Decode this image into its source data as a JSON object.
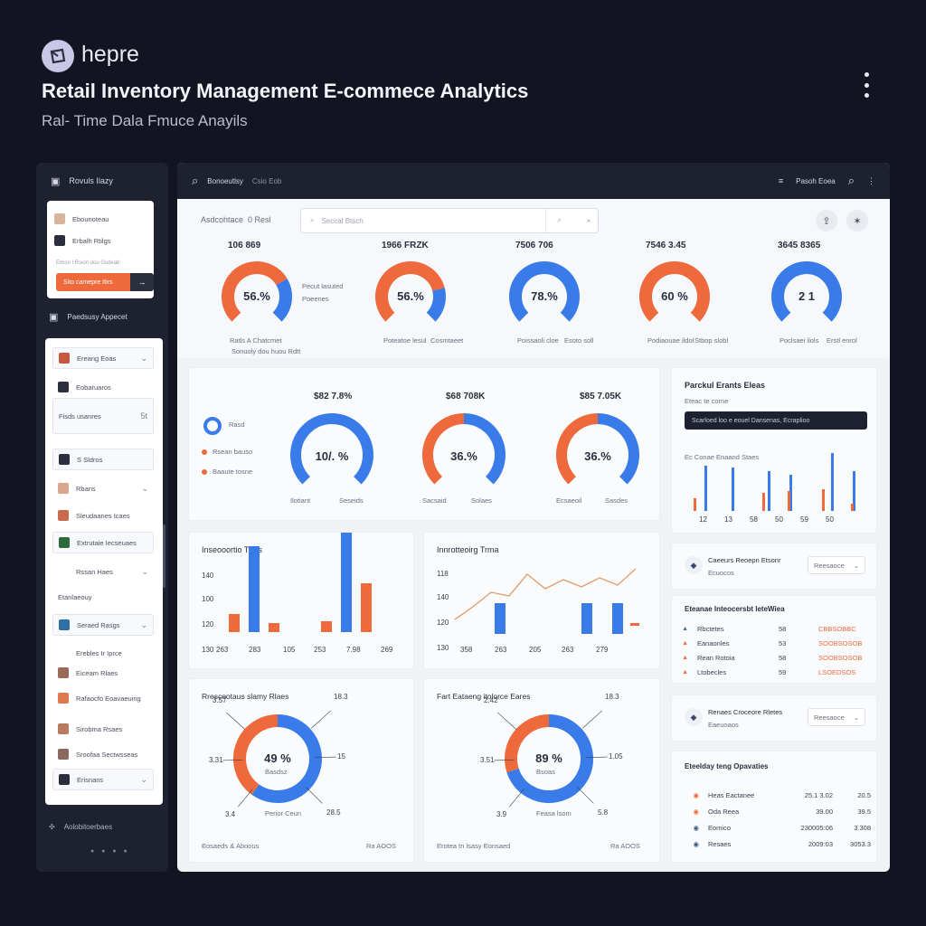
{
  "header": {
    "brand": "hepre",
    "title": "Retail Inventory Management E-commece Analytics",
    "subtitle": "Ral- Time Dala Fmuce Anayils"
  },
  "sidebar": {
    "heading": "Rovuls Ilazy",
    "card_rows": [
      "Ebounoteau",
      "Erbalh Rtilgs"
    ],
    "card_hint": "Erbon l Rsion dou Gsdeab",
    "cta_label": "Sito camepre Itirs",
    "cta_arrow": "→",
    "section": "Paedsusy Appecet",
    "items": [
      {
        "label": "Ereang Eoas",
        "chev": "⌄"
      },
      {
        "label": "Eobaruaros",
        "chev": ""
      },
      {
        "label": "Fisds usanres",
        "chev": "5t"
      },
      {
        "label": "S Sldros",
        "chev": ""
      },
      {
        "label": "Rbans",
        "chev": "⌄"
      },
      {
        "label": "Sleudaanes Icaes",
        "chev": ""
      },
      {
        "label": "Extrutaie Iecseuaes",
        "chev": ""
      },
      {
        "label": "Rssan Haes",
        "chev": "⌄"
      },
      {
        "label": "Etanlaeouy",
        "chev": ""
      },
      {
        "label": "Seraed Rasgs",
        "chev": "⌄"
      },
      {
        "label": "Erebles Ir Iprce",
        "chev": ""
      },
      {
        "label": "Eiceam Rlaes",
        "chev": ""
      },
      {
        "label": "Rafaocfo Eoavaeuing",
        "chev": ""
      },
      {
        "label": "Sirobma Rsaes",
        "chev": ""
      },
      {
        "label": "Sroofaa Sectwsseas",
        "chev": ""
      },
      {
        "label": "Erisnans",
        "chev": "⌄"
      }
    ],
    "footer": "Aolobitoerbaes"
  },
  "topbar": {
    "title": "Bonoeutlsy",
    "tag": "Csio Eob",
    "right_label": "Pasoh Eoea"
  },
  "top_gauges": {
    "label": "Asdcohtace",
    "label_extra": "0  Resl",
    "search_placeholder": "Seccal Btsch",
    "items": [
      {
        "caption": "106 869",
        "value": "56.%",
        "pct": 0.72,
        "color": "#ee6a3c",
        "legend": [
          "Pecut lasuted",
          "Poeenes"
        ],
        "foot": "Ratls A Chatcmet",
        "foot2": "Sonuoly dou huou Rdtt"
      },
      {
        "caption": "1966 FRZK",
        "value": "56.%",
        "pct": 0.78,
        "color": "#ee6a3c",
        "foot": "Poteatoe lesul",
        "foot2": "Cosmtaeet"
      },
      {
        "caption": "7506 706",
        "value": "78.%",
        "pct": 1.0,
        "color": "#3a7bea",
        "foot": "Poissaoli cloe",
        "foot2": "Esoto soll"
      },
      {
        "caption": "7546 3.45",
        "value": "60 %",
        "pct": 1.0,
        "color": "#ee6a3c",
        "foot": "Podiaouae ildol",
        "foot2": "Stbop slobl"
      },
      {
        "caption": "3645 8365",
        "value": "2 1",
        "pct": 1.0,
        "color": "#3a7bea",
        "foot": "Poclsaei ilols",
        "foot2": "Erstl enrol"
      }
    ]
  },
  "mid_gauges": {
    "legend": [
      "Rasd",
      "Rsean bauso",
      "Baaute tosne"
    ],
    "items": [
      {
        "caption": "$82 7.8%",
        "value": "10/. %",
        "pct": 1.0,
        "color": "#3a7bea",
        "l": "Ilotiant",
        "r": "Seseids"
      },
      {
        "caption": "$68 708K",
        "value": "36.%",
        "pct": 0.5,
        "color": "#ee6a3c",
        "l": "Sacsaid",
        "r": "Solaes"
      },
      {
        "caption": "$85 7.05K",
        "value": "36.%",
        "pct": 0.5,
        "color": "#ee6a3c",
        "l": "Ecsaeoil",
        "r": "Sasdes"
      }
    ]
  },
  "right_panel": {
    "title": "Parckul Erants Eleas",
    "sub": "Eteac te corne",
    "dark_label": "Scarloed loo e eouel Dansenas, Ecraplioo",
    "chart_title": "Ec Conae Enaand Staes",
    "cards": [
      {
        "t": "Caeeurs Reoepn Etsonr",
        "s": "Ecuocos",
        "dd": "Reesaoce"
      },
      {
        "t": "Renaes Croceore Rletes",
        "s": "Eaeuoaos",
        "dd": "Reesaoce"
      }
    ],
    "list_title": "Eteanae Inteocersbt leteWiea",
    "list": [
      {
        "n": "Rbctetes",
        "v": "58",
        "o": "CBBSOBBC"
      },
      {
        "n": "Eanaonles",
        "v": "53",
        "o": "SOOBSOSOB"
      },
      {
        "n": "Rean Rotoia",
        "v": "58",
        "o": "SOOBSOSOB"
      },
      {
        "n": "Ltobecles",
        "v": "59",
        "o": "LSOEDSOS"
      }
    ],
    "ops_title": "Eteelday teng Opavaties",
    "ops": [
      {
        "n": "Heas Eactanee",
        "v": "25.1 3.02",
        "o": "20.5"
      },
      {
        "n": "Oda Reea",
        "v": "39.00",
        "o": "39.5"
      },
      {
        "n": "Eomico",
        "v": "230005:06",
        "o": "3.308"
      },
      {
        "n": "Resaes",
        "v": "2009:03",
        "o": "3053.3"
      }
    ]
  },
  "chart_data": [
    {
      "type": "bar",
      "title": "Inseooortio Trms",
      "ylabels": [
        "140",
        "100",
        "120",
        "130"
      ],
      "categories": [
        "263",
        "283",
        "105",
        "253",
        "7.98",
        "269"
      ],
      "series": [
        {
          "values": [
            20,
            95,
            10,
            12,
            110,
            54
          ]
        },
        {
          "values": [
            0,
            0,
            0,
            0,
            0,
            0
          ]
        }
      ]
    },
    {
      "type": "line",
      "title": "Innrotteoirg Trma",
      "ylabels": [
        "118",
        "140",
        "120",
        "130"
      ],
      "categories": [
        "358",
        "263",
        "205",
        "263",
        "279"
      ],
      "line": [
        12,
        26,
        42,
        38,
        62,
        46,
        56,
        48,
        58,
        50,
        68
      ],
      "bars": [
        34,
        34,
        34
      ]
    },
    {
      "type": "pie",
      "title": "Rresceotaus slamy Rlaes",
      "center_value": "49 %",
      "center_label": "Basdsz",
      "callouts": [
        "3.57",
        "18.3",
        "15",
        "3.31",
        "28.5",
        "3.4"
      ],
      "slices": [
        {
          "label": "Blue",
          "value": 60
        },
        {
          "label": "Orange",
          "value": 40
        }
      ],
      "footer_l": "Eosaeds & Aboous",
      "footer_r": "Ra  AOOS",
      "footer_mid": "Perior Ceun"
    },
    {
      "type": "pie",
      "title": "Fart Eataeng itolorce Eares",
      "center_value": "89 %",
      "center_label": "Bsoas",
      "callouts": [
        "2.42",
        "18.3",
        "1.05",
        "3.51",
        "5.8",
        "3.9"
      ],
      "slices": [
        {
          "label": "Blue",
          "value": 70
        },
        {
          "label": "Orange",
          "value": 30
        }
      ],
      "footer_l": "Erotea tn lsasy Eonsaed",
      "footer_r": "Ra  AOOS",
      "footer_mid": "Feasa lsom"
    },
    {
      "type": "bar",
      "title": "Ec Conae Enaand Staes",
      "categories": [
        "12",
        "13",
        "58",
        "50",
        "59",
        "50"
      ],
      "series": [
        {
          "values": [
            50,
            48,
            44,
            40,
            64,
            44
          ]
        },
        {
          "values": [
            14,
            0,
            20,
            22,
            24,
            8
          ]
        }
      ]
    }
  ],
  "colors": {
    "blue": "#3a7bea",
    "orange": "#ee6a3c",
    "dark": "#1d2130"
  }
}
